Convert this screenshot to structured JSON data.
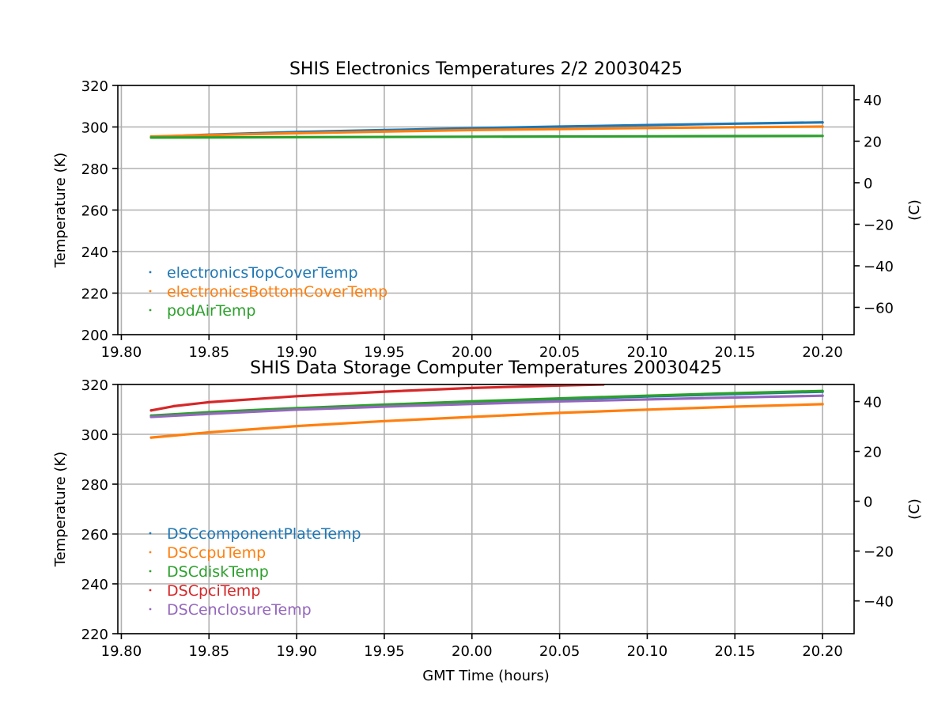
{
  "chart_data": [
    {
      "type": "scatter",
      "title": "SHIS Electronics Temperatures 2/2 20030425",
      "xlabel": "",
      "ylabel": "Temperature (K)",
      "y2label": "(C)",
      "xlim": [
        19.798,
        20.218
      ],
      "ylim": [
        200,
        320
      ],
      "x_ticks": [
        "19.80",
        "19.85",
        "19.90",
        "19.95",
        "20.00",
        "20.05",
        "20.10",
        "20.15",
        "20.20"
      ],
      "y_ticks": [
        "200",
        "220",
        "240",
        "260",
        "280",
        "300",
        "320"
      ],
      "y2_ticks": [
        "40",
        "20",
        "0",
        "−20",
        "−40",
        "−60"
      ],
      "grid": true,
      "legend_position": "lower-left",
      "series": [
        {
          "name": "electronicsTopCoverTemp",
          "color": "#1f77b4",
          "x": [
            19.817,
            19.85,
            19.9,
            19.95,
            20.0,
            20.05,
            20.1,
            20.15,
            20.2
          ],
          "y": [
            295.2,
            296.3,
            297.6,
            298.5,
            299.4,
            300.2,
            300.9,
            301.6,
            302.2
          ]
        },
        {
          "name": "electronicsBottomCoverTemp",
          "color": "#ff7f0e",
          "x": [
            19.817,
            19.85,
            19.9,
            19.95,
            20.0,
            20.05,
            20.1,
            20.15,
            20.2
          ],
          "y": [
            295.4,
            296.1,
            297.0,
            297.8,
            298.5,
            299.0,
            299.5,
            299.9,
            300.2
          ]
        },
        {
          "name": "podAirTemp",
          "color": "#2ca02c",
          "x": [
            19.817,
            19.9,
            20.0,
            20.1,
            20.2
          ],
          "y": [
            294.9,
            295.1,
            295.3,
            295.5,
            295.7
          ]
        }
      ]
    },
    {
      "type": "scatter",
      "title": "SHIS Data Storage Computer Temperatures 20030425",
      "xlabel": "GMT Time (hours)",
      "ylabel": "Temperature (K)",
      "y2label": "(C)",
      "xlim": [
        19.798,
        20.218
      ],
      "ylim": [
        220,
        320
      ],
      "x_ticks": [
        "19.80",
        "19.85",
        "19.90",
        "19.95",
        "20.00",
        "20.05",
        "20.10",
        "20.15",
        "20.20"
      ],
      "y_ticks": [
        "220",
        "240",
        "260",
        "280",
        "300",
        "320"
      ],
      "y2_ticks": [
        "40",
        "20",
        "0",
        "−20",
        "−40"
      ],
      "grid": true,
      "legend_position": "lower-left",
      "series": [
        {
          "name": "DSCcomponentPlateTemp",
          "color": "#1f77b4",
          "x": [
            19.817,
            19.85,
            19.9,
            19.95,
            20.0,
            20.05,
            20.1,
            20.15,
            20.2
          ],
          "y": [
            307.2,
            308.7,
            310.2,
            311.6,
            312.9,
            314.1,
            315.2,
            316.2,
            317.1
          ]
        },
        {
          "name": "DSCcpuTemp",
          "color": "#ff7f0e",
          "x": [
            19.817,
            19.85,
            19.9,
            19.95,
            20.0,
            20.05,
            20.1,
            20.15,
            20.2
          ],
          "y": [
            298.7,
            300.8,
            303.3,
            305.3,
            307.0,
            308.6,
            309.9,
            311.1,
            312.1
          ]
        },
        {
          "name": "DSCdiskTemp",
          "color": "#2ca02c",
          "x": [
            19.817,
            19.85,
            19.9,
            19.95,
            20.0,
            20.05,
            20.1,
            20.15,
            20.2
          ],
          "y": [
            307.5,
            308.9,
            310.5,
            311.9,
            313.2,
            314.4,
            315.5,
            316.5,
            317.4
          ]
        },
        {
          "name": "DSCpciTemp",
          "color": "#d62728",
          "x": [
            19.817,
            19.83,
            19.85,
            19.9,
            19.95,
            20.0,
            20.05,
            20.075
          ],
          "y": [
            309.6,
            311.3,
            312.9,
            315.3,
            317.1,
            318.6,
            319.6,
            320.0
          ]
        },
        {
          "name": "DSCenclosureTemp",
          "color": "#9467bd",
          "x": [
            19.817,
            19.85,
            19.9,
            19.95,
            20.0,
            20.05,
            20.1,
            20.15,
            20.2
          ],
          "y": [
            307.0,
            308.2,
            309.9,
            311.1,
            312.2,
            313.2,
            314.0,
            314.8,
            315.5
          ]
        }
      ]
    }
  ]
}
